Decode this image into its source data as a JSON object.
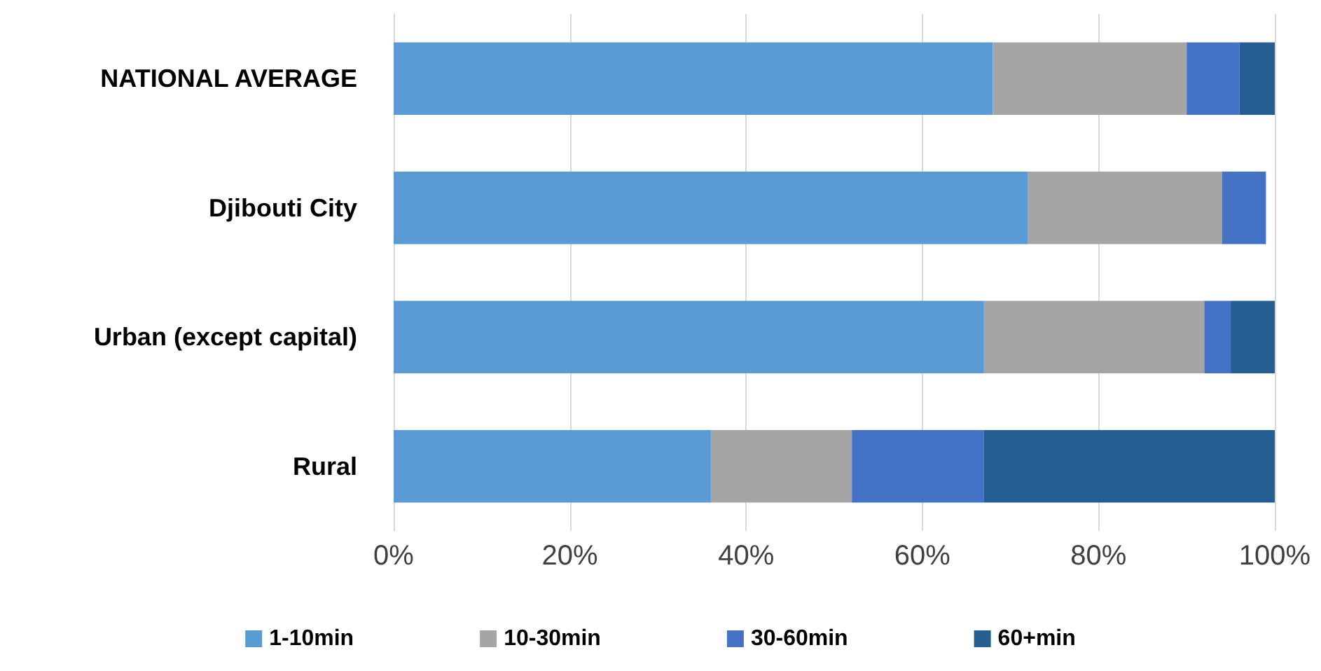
{
  "chart_data": {
    "type": "bar",
    "orientation": "horizontal",
    "stacked": true,
    "categories": [
      "NATIONAL AVERAGE",
      "Djibouti City",
      "Urban (except capital)",
      "Rural"
    ],
    "series": [
      {
        "name": "1-10min",
        "color": "#5b9bd5",
        "values": [
          68,
          72,
          67,
          36
        ]
      },
      {
        "name": "10-30min",
        "color": "#a5a5a5",
        "values": [
          22,
          22,
          25,
          16
        ]
      },
      {
        "name": "30-60min",
        "color": "#4472c4",
        "values": [
          6,
          5,
          3,
          15
        ]
      },
      {
        "name": "60+min",
        "color": "#255e91",
        "values": [
          4,
          0,
          5,
          33
        ]
      }
    ],
    "xlim": [
      0,
      100
    ],
    "xticks": [
      {
        "value": 0,
        "label": "0%"
      },
      {
        "value": 20,
        "label": "20%"
      },
      {
        "value": 40,
        "label": "40%"
      },
      {
        "value": 60,
        "label": "60%"
      },
      {
        "value": 80,
        "label": "80%"
      },
      {
        "value": 100,
        "label": "100%"
      }
    ],
    "grid": "x",
    "legend": "bottom"
  }
}
